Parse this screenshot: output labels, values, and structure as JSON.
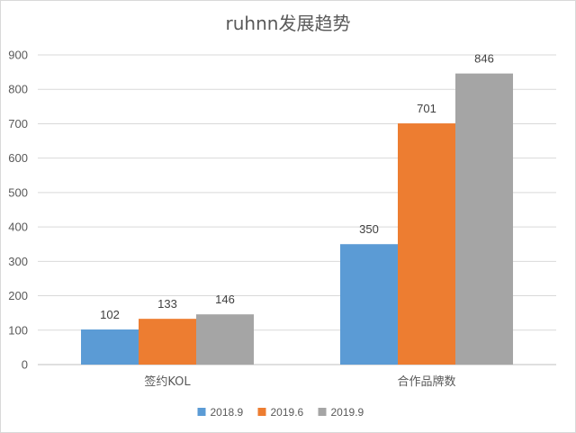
{
  "chart_data": {
    "type": "bar",
    "title": "ruhnn发展趋势",
    "categories": [
      "签约KOL",
      "合作品牌数"
    ],
    "series": [
      {
        "name": "2018.9",
        "values": [
          102,
          350
        ],
        "color": "#5b9bd5"
      },
      {
        "name": "2019.6",
        "values": [
          133,
          701
        ],
        "color": "#ed7d31"
      },
      {
        "name": "2019.9",
        "values": [
          146,
          846
        ],
        "color": "#a5a5a5"
      }
    ],
    "yticks": [
      "0",
      "100",
      "200",
      "300",
      "400",
      "500",
      "600",
      "700",
      "800",
      "900"
    ],
    "ylim": [
      0,
      900
    ],
    "grid": true,
    "legend": "bottom",
    "xlabel": "",
    "ylabel": ""
  }
}
